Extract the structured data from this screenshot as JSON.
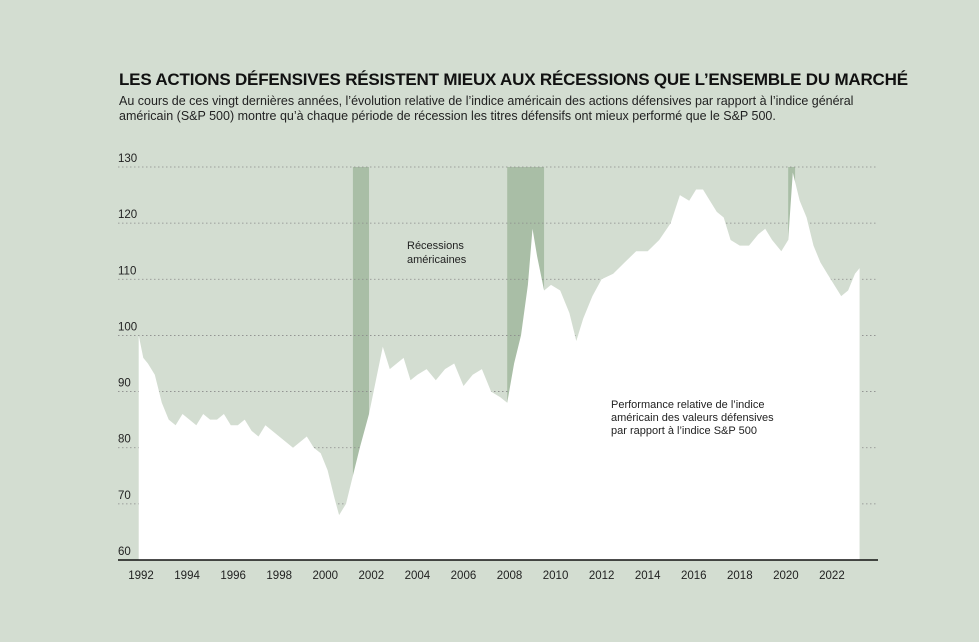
{
  "title": "LES ACTIONS DÉFENSIVES RÉSISTENT MIEUX AUX RÉCESSIONS QUE L’ENSEMBLE DU MARCHÉ",
  "subtitle": "Au cours de ces vingt dernières années, l’évolution relative de l’indice américain des actions défensives par rapport à l’indice général américain (S&P 500) montre qu’à chaque période de récession les titres défensifs ont mieux performé que le S&P 500.",
  "colors": {
    "background": "#d3ddd1",
    "area": "#ffffff",
    "recession": "#a9bea6",
    "grid": "#8a8a8a",
    "axis": "#111111"
  },
  "chart_data": {
    "type": "area",
    "title": "LES ACTIONS DÉFENSIVES RÉSISTENT MIEUX AUX RÉCESSIONS QUE L’ENSEMBLE DU MARCHÉ",
    "xlabel": "",
    "ylabel": "",
    "xlim": [
      1991.0,
      2024.0
    ],
    "ylim": [
      60,
      130
    ],
    "yticks": [
      60,
      70,
      80,
      90,
      100,
      110,
      120,
      130
    ],
    "xticks": [
      "1992",
      "1994",
      "1996",
      "1998",
      "2000",
      "2002",
      "2004",
      "2006",
      "2008",
      "2010",
      "2012",
      "2014",
      "2016",
      "2018",
      "2020",
      "2022"
    ],
    "grid": true,
    "recessions": [
      [
        2001.2,
        2001.9
      ],
      [
        2007.9,
        2009.5
      ],
      [
        2020.1,
        2020.4
      ]
    ],
    "annotations": [
      {
        "lines": [
          "Récessions",
          "américaines"
        ]
      },
      {
        "lines": [
          "Performance relative de l’indice",
          "américain des valeurs défensives",
          "par rapport à l’indice S&P 500"
        ]
      }
    ],
    "series": [
      {
        "name": "Performance relative de l’indice américain des valeurs défensives par rapport à l’indice S&P 500",
        "x": [
          1991.9,
          1992.1,
          1992.3,
          1992.6,
          1992.9,
          1993.2,
          1993.5,
          1993.8,
          1994.1,
          1994.4,
          1994.7,
          1995.0,
          1995.3,
          1995.6,
          1995.9,
          1996.2,
          1996.5,
          1996.8,
          1997.1,
          1997.4,
          1997.7,
          1998.0,
          1998.3,
          1998.6,
          1998.9,
          1999.2,
          1999.5,
          1999.8,
          2000.1,
          2000.4,
          2000.6,
          2000.9,
          2001.2,
          2001.5,
          2001.9,
          2002.2,
          2002.5,
          2002.8,
          2003.1,
          2003.4,
          2003.7,
          2004.0,
          2004.4,
          2004.8,
          2005.2,
          2005.6,
          2006.0,
          2006.4,
          2006.8,
          2007.2,
          2007.6,
          2007.9,
          2008.2,
          2008.5,
          2008.8,
          2009.0,
          2009.2,
          2009.5,
          2009.8,
          2010.2,
          2010.6,
          2010.9,
          2011.2,
          2011.6,
          2012.0,
          2012.5,
          2013.0,
          2013.5,
          2014.0,
          2014.5,
          2015.0,
          2015.4,
          2015.8,
          2016.1,
          2016.4,
          2016.7,
          2017.0,
          2017.3,
          2017.6,
          2018.0,
          2018.4,
          2018.8,
          2019.1,
          2019.4,
          2019.8,
          2020.1,
          2020.3,
          2020.6,
          2020.9,
          2021.2,
          2021.5,
          2021.8,
          2022.1,
          2022.4,
          2022.7,
          2023.0,
          2023.2
        ],
        "values": [
          100,
          96,
          95,
          93,
          88,
          85,
          84,
          86,
          85,
          84,
          86,
          85,
          85,
          86,
          84,
          84,
          85,
          83,
          82,
          84,
          83,
          82,
          81,
          80,
          81,
          82,
          80,
          79,
          76,
          71,
          68,
          70,
          75,
          80,
          86,
          92,
          98,
          94,
          95,
          96,
          92,
          93,
          94,
          92,
          94,
          95,
          91,
          93,
          94,
          90,
          89,
          88,
          95,
          100,
          109,
          119,
          114,
          108,
          109,
          108,
          104,
          99,
          103,
          107,
          110,
          111,
          113,
          115,
          115,
          117,
          120,
          125,
          124,
          126,
          126,
          124,
          122,
          121,
          117,
          116,
          116,
          118,
          119,
          117,
          115,
          117,
          129,
          124,
          121,
          116,
          113,
          111,
          109,
          107,
          108,
          111,
          112
        ]
      }
    ]
  }
}
